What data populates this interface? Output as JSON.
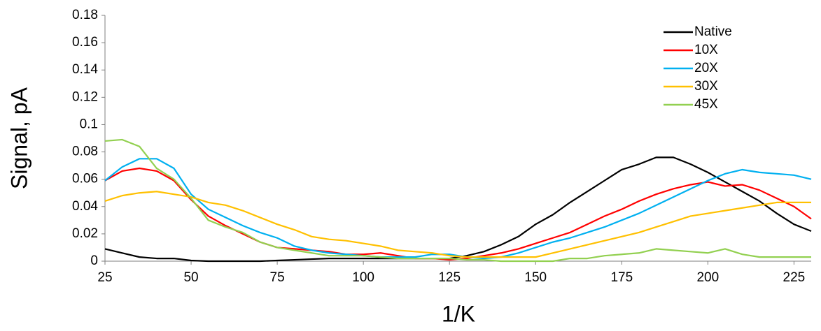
{
  "chart_data": {
    "type": "line",
    "x_label": "1/K",
    "y_label": "Signal, pA",
    "x": [
      25,
      30,
      35,
      40,
      45,
      50,
      55,
      60,
      65,
      70,
      75,
      80,
      85,
      90,
      95,
      100,
      105,
      110,
      115,
      120,
      125,
      130,
      135,
      140,
      145,
      150,
      155,
      160,
      165,
      170,
      175,
      180,
      185,
      190,
      195,
      200,
      205,
      210,
      215,
      220,
      225,
      230
    ],
    "series": [
      {
        "name": "Native",
        "color": "#000000",
        "values": [
          0.009,
          0.006,
          0.003,
          0.002,
          0.002,
          0.0005,
          0,
          0,
          0,
          0,
          0.0005,
          0.001,
          0.0015,
          0.002,
          0.002,
          0.002,
          0.002,
          0.002,
          0.002,
          0.002,
          0.002,
          0.004,
          0.007,
          0.012,
          0.018,
          0.027,
          0.034,
          0.043,
          0.051,
          0.059,
          0.067,
          0.071,
          0.076,
          0.076,
          0.071,
          0.065,
          0.058,
          0.051,
          0.044,
          0.035,
          0.027,
          0.022
        ]
      },
      {
        "name": "10X",
        "color": "#ff0000",
        "values": [
          0.059,
          0.066,
          0.068,
          0.066,
          0.059,
          0.045,
          0.033,
          0.026,
          0.02,
          0.014,
          0.01,
          0.009,
          0.008,
          0.007,
          0.005,
          0.005,
          0.006,
          0.004,
          0.002,
          0.002,
          0.001,
          0.002,
          0.004,
          0.006,
          0.009,
          0.013,
          0.017,
          0.021,
          0.027,
          0.033,
          0.038,
          0.044,
          0.049,
          0.053,
          0.056,
          0.058,
          0.055,
          0.056,
          0.052,
          0.046,
          0.04,
          0.031
        ]
      },
      {
        "name": "20X",
        "color": "#00b0f0",
        "values": [
          0.059,
          0.069,
          0.075,
          0.075,
          0.068,
          0.049,
          0.038,
          0.032,
          0.026,
          0.021,
          0.017,
          0.011,
          0.008,
          0.006,
          0.005,
          0.004,
          0.003,
          0.003,
          0.003,
          0.005,
          0.005,
          0.003,
          0.002,
          0.003,
          0.006,
          0.01,
          0.014,
          0.017,
          0.021,
          0.025,
          0.03,
          0.035,
          0.041,
          0.047,
          0.053,
          0.059,
          0.064,
          0.067,
          0.065,
          0.064,
          0.063,
          0.06
        ]
      },
      {
        "name": "30X",
        "color": "#ffc000",
        "values": [
          0.044,
          0.048,
          0.05,
          0.051,
          0.049,
          0.047,
          0.043,
          0.041,
          0.037,
          0.032,
          0.027,
          0.023,
          0.018,
          0.016,
          0.015,
          0.013,
          0.011,
          0.008,
          0.007,
          0.006,
          0.004,
          0.003,
          0.003,
          0.003,
          0.003,
          0.003,
          0.006,
          0.009,
          0.012,
          0.015,
          0.018,
          0.021,
          0.025,
          0.029,
          0.033,
          0.035,
          0.037,
          0.039,
          0.041,
          0.043,
          0.043,
          0.043
        ]
      },
      {
        "name": "45X",
        "color": "#92d050",
        "values": [
          0.088,
          0.089,
          0.084,
          0.068,
          0.06,
          0.046,
          0.03,
          0.025,
          0.021,
          0.014,
          0.01,
          0.008,
          0.006,
          0.004,
          0.004,
          0.004,
          0.003,
          0.002,
          0.002,
          0.002,
          0.002,
          0.001,
          0.001,
          0,
          0,
          0,
          0,
          0.002,
          0.002,
          0.004,
          0.005,
          0.006,
          0.009,
          0.008,
          0.007,
          0.006,
          0.009,
          0.005,
          0.003,
          0.003,
          0.003,
          0.003
        ]
      }
    ],
    "xlim": [
      25,
      230
    ],
    "xticks": [
      25,
      50,
      75,
      100,
      125,
      150,
      175,
      200,
      225
    ],
    "ylim": [
      0,
      0.18
    ],
    "yticks": [
      0,
      0.02,
      0.04,
      0.06,
      0.08,
      0.1,
      0.12,
      0.14,
      0.16,
      0.18
    ],
    "grid": false,
    "legend": "upper right"
  }
}
